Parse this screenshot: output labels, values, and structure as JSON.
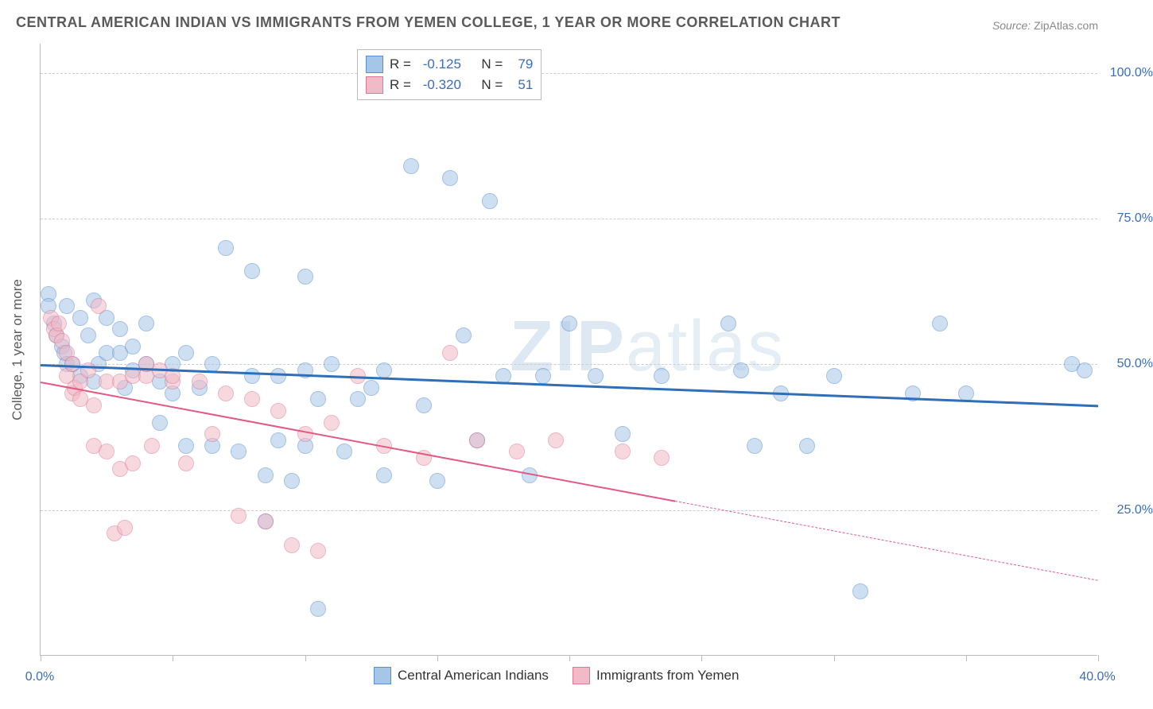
{
  "title": "CENTRAL AMERICAN INDIAN VS IMMIGRANTS FROM YEMEN COLLEGE, 1 YEAR OR MORE CORRELATION CHART",
  "source_label": "Source:",
  "source_value": "ZipAtlas.com",
  "y_axis_label": "College, 1 year or more",
  "watermark_main": "ZIP",
  "watermark_sub": "atlas",
  "chart": {
    "type": "scatter",
    "xlim": [
      0,
      40
    ],
    "ylim": [
      0,
      105
    ],
    "x_ticks_major": [
      0,
      40
    ],
    "x_ticks_minor": [
      5,
      10,
      15,
      20,
      25,
      30,
      35
    ],
    "x_tick_labels": {
      "0": "0.0%",
      "40": "40.0%"
    },
    "y_ticks": [
      25,
      50,
      75,
      100
    ],
    "y_tick_labels": {
      "25": "25.0%",
      "50": "50.0%",
      "75": "75.0%",
      "100": "100.0%"
    },
    "background_color": "#ffffff",
    "grid_color": "#cccccc",
    "axis_color": "#bbbbbb",
    "tick_label_color": "#3b6db8",
    "label_fontsize": 17,
    "tick_fontsize": 16,
    "title_fontsize": 18,
    "series": [
      {
        "name": "Central American Indians",
        "fill_color": "#a6c6e7",
        "stroke_color": "#5a8fce",
        "fill_opacity": 0.55,
        "marker_radius": 10,
        "trend": {
          "x1": 0,
          "y1": 50,
          "x2": 40,
          "y2": 43,
          "color": "#2e6fb8",
          "width": 2.5,
          "solid_to_x": 40
        },
        "R": "-0.125",
        "N": "79",
        "points": [
          [
            0.3,
            62
          ],
          [
            0.3,
            60
          ],
          [
            0.5,
            57
          ],
          [
            0.6,
            55
          ],
          [
            0.8,
            53
          ],
          [
            0.9,
            52
          ],
          [
            1.0,
            50
          ],
          [
            1.0,
            60
          ],
          [
            1.2,
            50
          ],
          [
            1.5,
            48
          ],
          [
            1.5,
            58
          ],
          [
            1.8,
            55
          ],
          [
            2.0,
            61
          ],
          [
            2.0,
            47
          ],
          [
            2.2,
            50
          ],
          [
            2.5,
            52
          ],
          [
            2.5,
            58
          ],
          [
            3.0,
            56
          ],
          [
            3.0,
            52
          ],
          [
            3.2,
            46
          ],
          [
            3.5,
            49
          ],
          [
            3.5,
            53
          ],
          [
            4.0,
            50
          ],
          [
            4.0,
            57
          ],
          [
            4.5,
            40
          ],
          [
            4.5,
            47
          ],
          [
            5.0,
            50
          ],
          [
            5.0,
            45
          ],
          [
            5.5,
            36
          ],
          [
            5.5,
            52
          ],
          [
            6.0,
            46
          ],
          [
            6.5,
            36
          ],
          [
            6.5,
            50
          ],
          [
            7.0,
            70
          ],
          [
            7.5,
            35
          ],
          [
            8.0,
            66
          ],
          [
            8.0,
            48
          ],
          [
            8.5,
            31
          ],
          [
            8.5,
            23
          ],
          [
            9.0,
            37
          ],
          [
            9.0,
            48
          ],
          [
            9.5,
            30
          ],
          [
            10.0,
            65
          ],
          [
            10.0,
            49
          ],
          [
            10.0,
            36
          ],
          [
            10.5,
            8
          ],
          [
            10.5,
            44
          ],
          [
            11.0,
            50
          ],
          [
            11.5,
            35
          ],
          [
            12.0,
            44
          ],
          [
            12.5,
            46
          ],
          [
            13.0,
            49
          ],
          [
            13.0,
            31
          ],
          [
            14.0,
            84
          ],
          [
            14.5,
            43
          ],
          [
            15.0,
            30
          ],
          [
            15.5,
            82
          ],
          [
            16.0,
            55
          ],
          [
            16.5,
            37
          ],
          [
            17.0,
            78
          ],
          [
            17.5,
            48
          ],
          [
            18.5,
            31
          ],
          [
            19.0,
            48
          ],
          [
            20.0,
            57
          ],
          [
            21.0,
            48
          ],
          [
            22.0,
            38
          ],
          [
            23.5,
            48
          ],
          [
            26.0,
            57
          ],
          [
            26.5,
            49
          ],
          [
            27.0,
            36
          ],
          [
            28.0,
            45
          ],
          [
            29.0,
            36
          ],
          [
            30.0,
            48
          ],
          [
            31.0,
            11
          ],
          [
            33.0,
            45
          ],
          [
            34.0,
            57
          ],
          [
            35.0,
            45
          ],
          [
            39.0,
            50
          ],
          [
            39.5,
            49
          ]
        ]
      },
      {
        "name": "Immigrants from Yemen",
        "fill_color": "#f2b9c6",
        "stroke_color": "#e07a94",
        "fill_opacity": 0.55,
        "marker_radius": 10,
        "trend": {
          "x1": 0,
          "y1": 47,
          "x2": 40,
          "y2": 13,
          "color": "#e05a84",
          "width": 2.2,
          "solid_to_x": 24
        },
        "R": "-0.320",
        "N": "51",
        "points": [
          [
            0.4,
            58
          ],
          [
            0.5,
            56
          ],
          [
            0.6,
            55
          ],
          [
            0.7,
            57
          ],
          [
            0.8,
            54
          ],
          [
            1.0,
            52
          ],
          [
            1.0,
            48
          ],
          [
            1.2,
            50
          ],
          [
            1.2,
            45
          ],
          [
            1.3,
            46
          ],
          [
            1.5,
            44
          ],
          [
            1.5,
            47
          ],
          [
            1.8,
            49
          ],
          [
            2.0,
            43
          ],
          [
            2.0,
            36
          ],
          [
            2.2,
            60
          ],
          [
            2.5,
            35
          ],
          [
            2.5,
            47
          ],
          [
            2.8,
            21
          ],
          [
            3.0,
            32
          ],
          [
            3.0,
            47
          ],
          [
            3.2,
            22
          ],
          [
            3.5,
            33
          ],
          [
            3.5,
            48
          ],
          [
            4.0,
            48
          ],
          [
            4.0,
            50
          ],
          [
            4.2,
            36
          ],
          [
            4.5,
            49
          ],
          [
            5.0,
            47
          ],
          [
            5.0,
            48
          ],
          [
            5.5,
            33
          ],
          [
            6.0,
            47
          ],
          [
            6.5,
            38
          ],
          [
            7.0,
            45
          ],
          [
            7.5,
            24
          ],
          [
            8.0,
            44
          ],
          [
            8.5,
            23
          ],
          [
            9.0,
            42
          ],
          [
            9.5,
            19
          ],
          [
            10.0,
            38
          ],
          [
            10.5,
            18
          ],
          [
            11.0,
            40
          ],
          [
            12.0,
            48
          ],
          [
            13.0,
            36
          ],
          [
            14.5,
            34
          ],
          [
            15.5,
            52
          ],
          [
            16.5,
            37
          ],
          [
            18.0,
            35
          ],
          [
            19.5,
            37
          ],
          [
            22.0,
            35
          ],
          [
            23.5,
            34
          ]
        ]
      }
    ]
  },
  "stats_box": {
    "R_label": "R =",
    "N_label": "N ="
  },
  "legend_items": [
    "Central American Indians",
    "Immigrants from Yemen"
  ]
}
